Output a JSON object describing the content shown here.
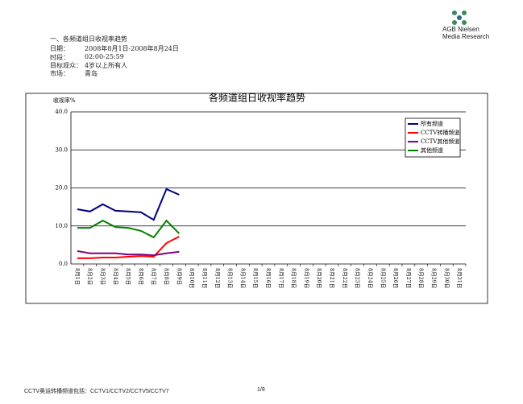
{
  "header": {
    "title": "一、各频道组日收视率趋势",
    "fields": [
      {
        "label": "日期：",
        "value": "2008年8月1日-2008年8月24日"
      },
      {
        "label": "时段：",
        "value": "02:00-25:59"
      },
      {
        "label": "目标观众：",
        "value": "4岁以上所有人"
      },
      {
        "label": "市场：",
        "value": "青岛"
      }
    ],
    "logo": [
      "AGB Nielsen",
      "Media Research"
    ]
  },
  "footer": {
    "note": "CCTV奥运转播频道包括：CCTV1/CCTV2/CCTV5/CCTV7",
    "page": "1/8"
  },
  "chart_data": {
    "type": "line",
    "title": "各频道组日收视率趋势",
    "y_label": "收视率%",
    "categories": [
      "8月1日",
      "8月2日",
      "8月3日",
      "8月4日",
      "8月5日",
      "8月6日",
      "8月7日",
      "8月8日",
      "8月9日",
      "8月10日",
      "8月11日",
      "8月12日",
      "8月13日",
      "8月14日",
      "8月15日",
      "8月16日",
      "8月17日",
      "8月18日",
      "8月19日",
      "8月20日",
      "8月21日",
      "8月22日",
      "8月23日",
      "8月24日",
      "8月25日",
      "8月26日",
      "8月27日",
      "8月28日",
      "8月29日",
      "8月30日",
      "8月31日"
    ],
    "series": [
      {
        "name": "所有频道",
        "color": "#000080",
        "values": [
          14.4,
          13.8,
          15.7,
          14.0,
          13.8,
          13.6,
          11.6,
          19.7,
          18.2,
          null,
          null,
          null,
          null,
          null,
          null,
          null,
          null,
          null,
          null,
          null,
          null,
          null,
          null,
          null,
          null,
          null,
          null,
          null,
          null,
          null,
          null
        ]
      },
      {
        "name": "CCTV转播频道",
        "color": "#ff0000",
        "values": [
          1.5,
          1.5,
          1.7,
          1.7,
          1.9,
          2.1,
          1.9,
          5.5,
          7.2,
          null,
          null,
          null,
          null,
          null,
          null,
          null,
          null,
          null,
          null,
          null,
          null,
          null,
          null,
          null,
          null,
          null,
          null,
          null,
          null,
          null,
          null
        ]
      },
      {
        "name": "CCTV其他频道",
        "color": "#800080",
        "values": [
          3.4,
          2.8,
          2.8,
          2.8,
          2.5,
          2.5,
          2.3,
          2.8,
          3.2,
          null,
          null,
          null,
          null,
          null,
          null,
          null,
          null,
          null,
          null,
          null,
          null,
          null,
          null,
          null,
          null,
          null,
          null,
          null,
          null,
          null,
          null
        ]
      },
      {
        "name": "其他频道",
        "color": "#008000",
        "values": [
          9.5,
          9.5,
          11.4,
          9.7,
          9.5,
          8.7,
          7.0,
          11.4,
          8.0,
          null,
          null,
          null,
          null,
          null,
          null,
          null,
          null,
          null,
          null,
          null,
          null,
          null,
          null,
          null,
          null,
          null,
          null,
          null,
          null,
          null,
          null
        ]
      }
    ],
    "ylim": [
      0,
      40
    ],
    "yticks": [
      {
        "value": 0,
        "label": "0.0"
      },
      {
        "value": 10,
        "label": "10.0"
      },
      {
        "value": 20,
        "label": "20.0"
      },
      {
        "value": 30,
        "label": "30.0"
      },
      {
        "value": 40,
        "label": "40.0"
      }
    ],
    "grid": true,
    "legend": "upper right"
  }
}
